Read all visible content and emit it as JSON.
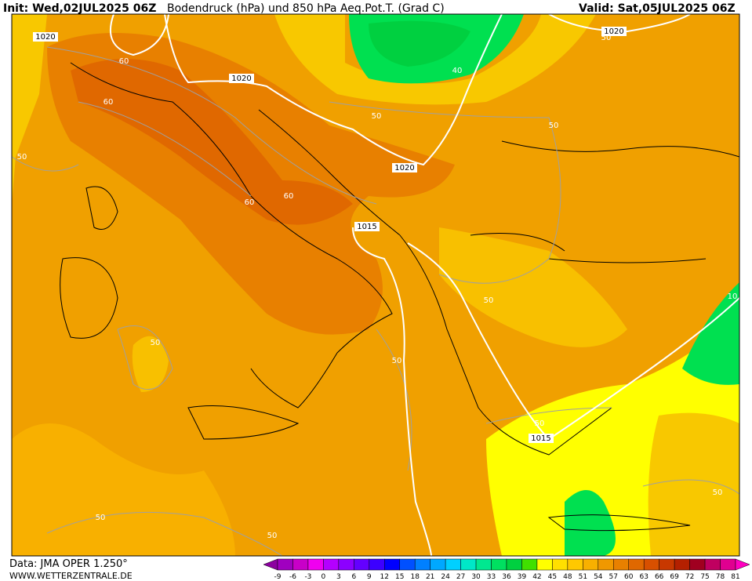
{
  "header": {
    "init": "Init: Wed,02JUL2025 06Z",
    "title": "Bodendruck (hPa) und 850 hPa Aeq.Pot.T. (Grad C)",
    "valid": "Valid: Sat,05JUL2025 06Z"
  },
  "footer": {
    "data": "Data: JMA OPER 1.250°",
    "site": "WWW.WETTERZENTRALE.DE"
  },
  "contour_labels": [
    "1020",
    "60",
    "60",
    "1020",
    "1020",
    "50",
    "40",
    "50",
    "50",
    "50",
    "1020",
    "60",
    "60",
    "1015",
    "50",
    "10",
    "50",
    "50",
    "50",
    "1015",
    "50",
    "50",
    "50"
  ],
  "colorbar": {
    "labels": [
      -9,
      -6,
      -3,
      0,
      3,
      6,
      9,
      12,
      15,
      18,
      21,
      24,
      27,
      30,
      33,
      36,
      39,
      42,
      45,
      48,
      51,
      54,
      57,
      60,
      63,
      66,
      69,
      72,
      75,
      78,
      81
    ],
    "colors": [
      "#8c00a0",
      "#a000c0",
      "#c800c8",
      "#f000f0",
      "#b400ff",
      "#8c00ff",
      "#6400ff",
      "#3c00ff",
      "#0000ff",
      "#0050ff",
      "#0080ff",
      "#00a8ff",
      "#00d0ff",
      "#00e8c8",
      "#00e890",
      "#00e060",
      "#00d040",
      "#40e000",
      "#ffff00",
      "#ffe000",
      "#ffc800",
      "#f8b000",
      "#f09800",
      "#e88000",
      "#e06800",
      "#d85000",
      "#c83800",
      "#b42000",
      "#a00020",
      "#c00060",
      "#e00090",
      "#ff00c0"
    ]
  }
}
